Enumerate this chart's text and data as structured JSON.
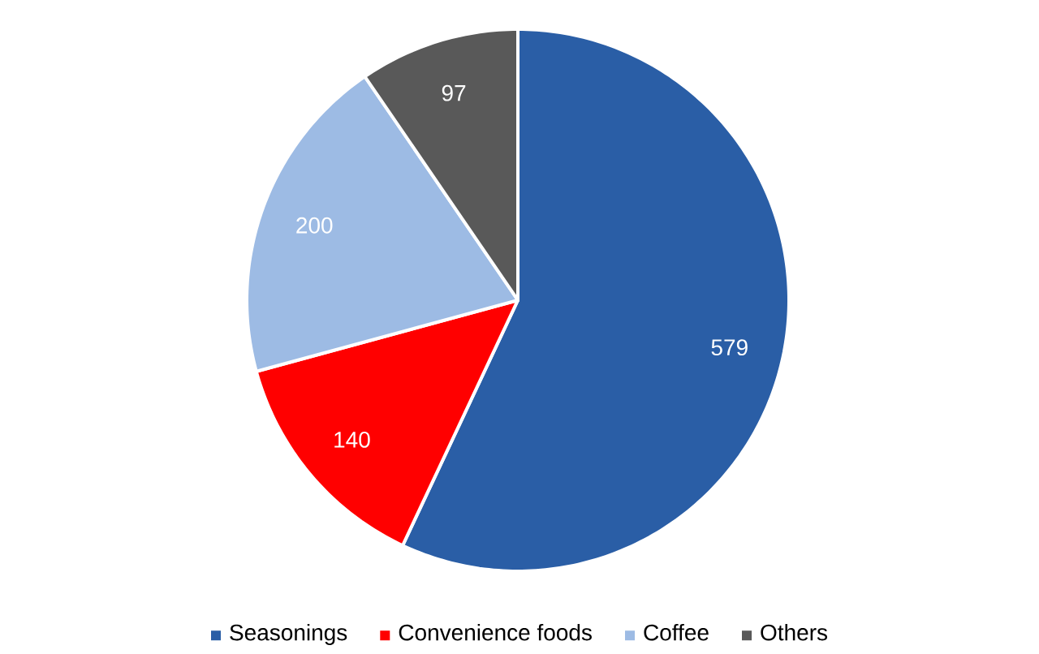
{
  "chart_data": {
    "type": "pie",
    "categories": [
      "Seasonings",
      "Convenience foods",
      "Coffee",
      "Others"
    ],
    "values": [
      579,
      140,
      200,
      97
    ],
    "colors": [
      "#2a5ea6",
      "#ff0000",
      "#9dbbe4",
      "#595959"
    ],
    "data_labels": true,
    "legend": "bottom"
  }
}
